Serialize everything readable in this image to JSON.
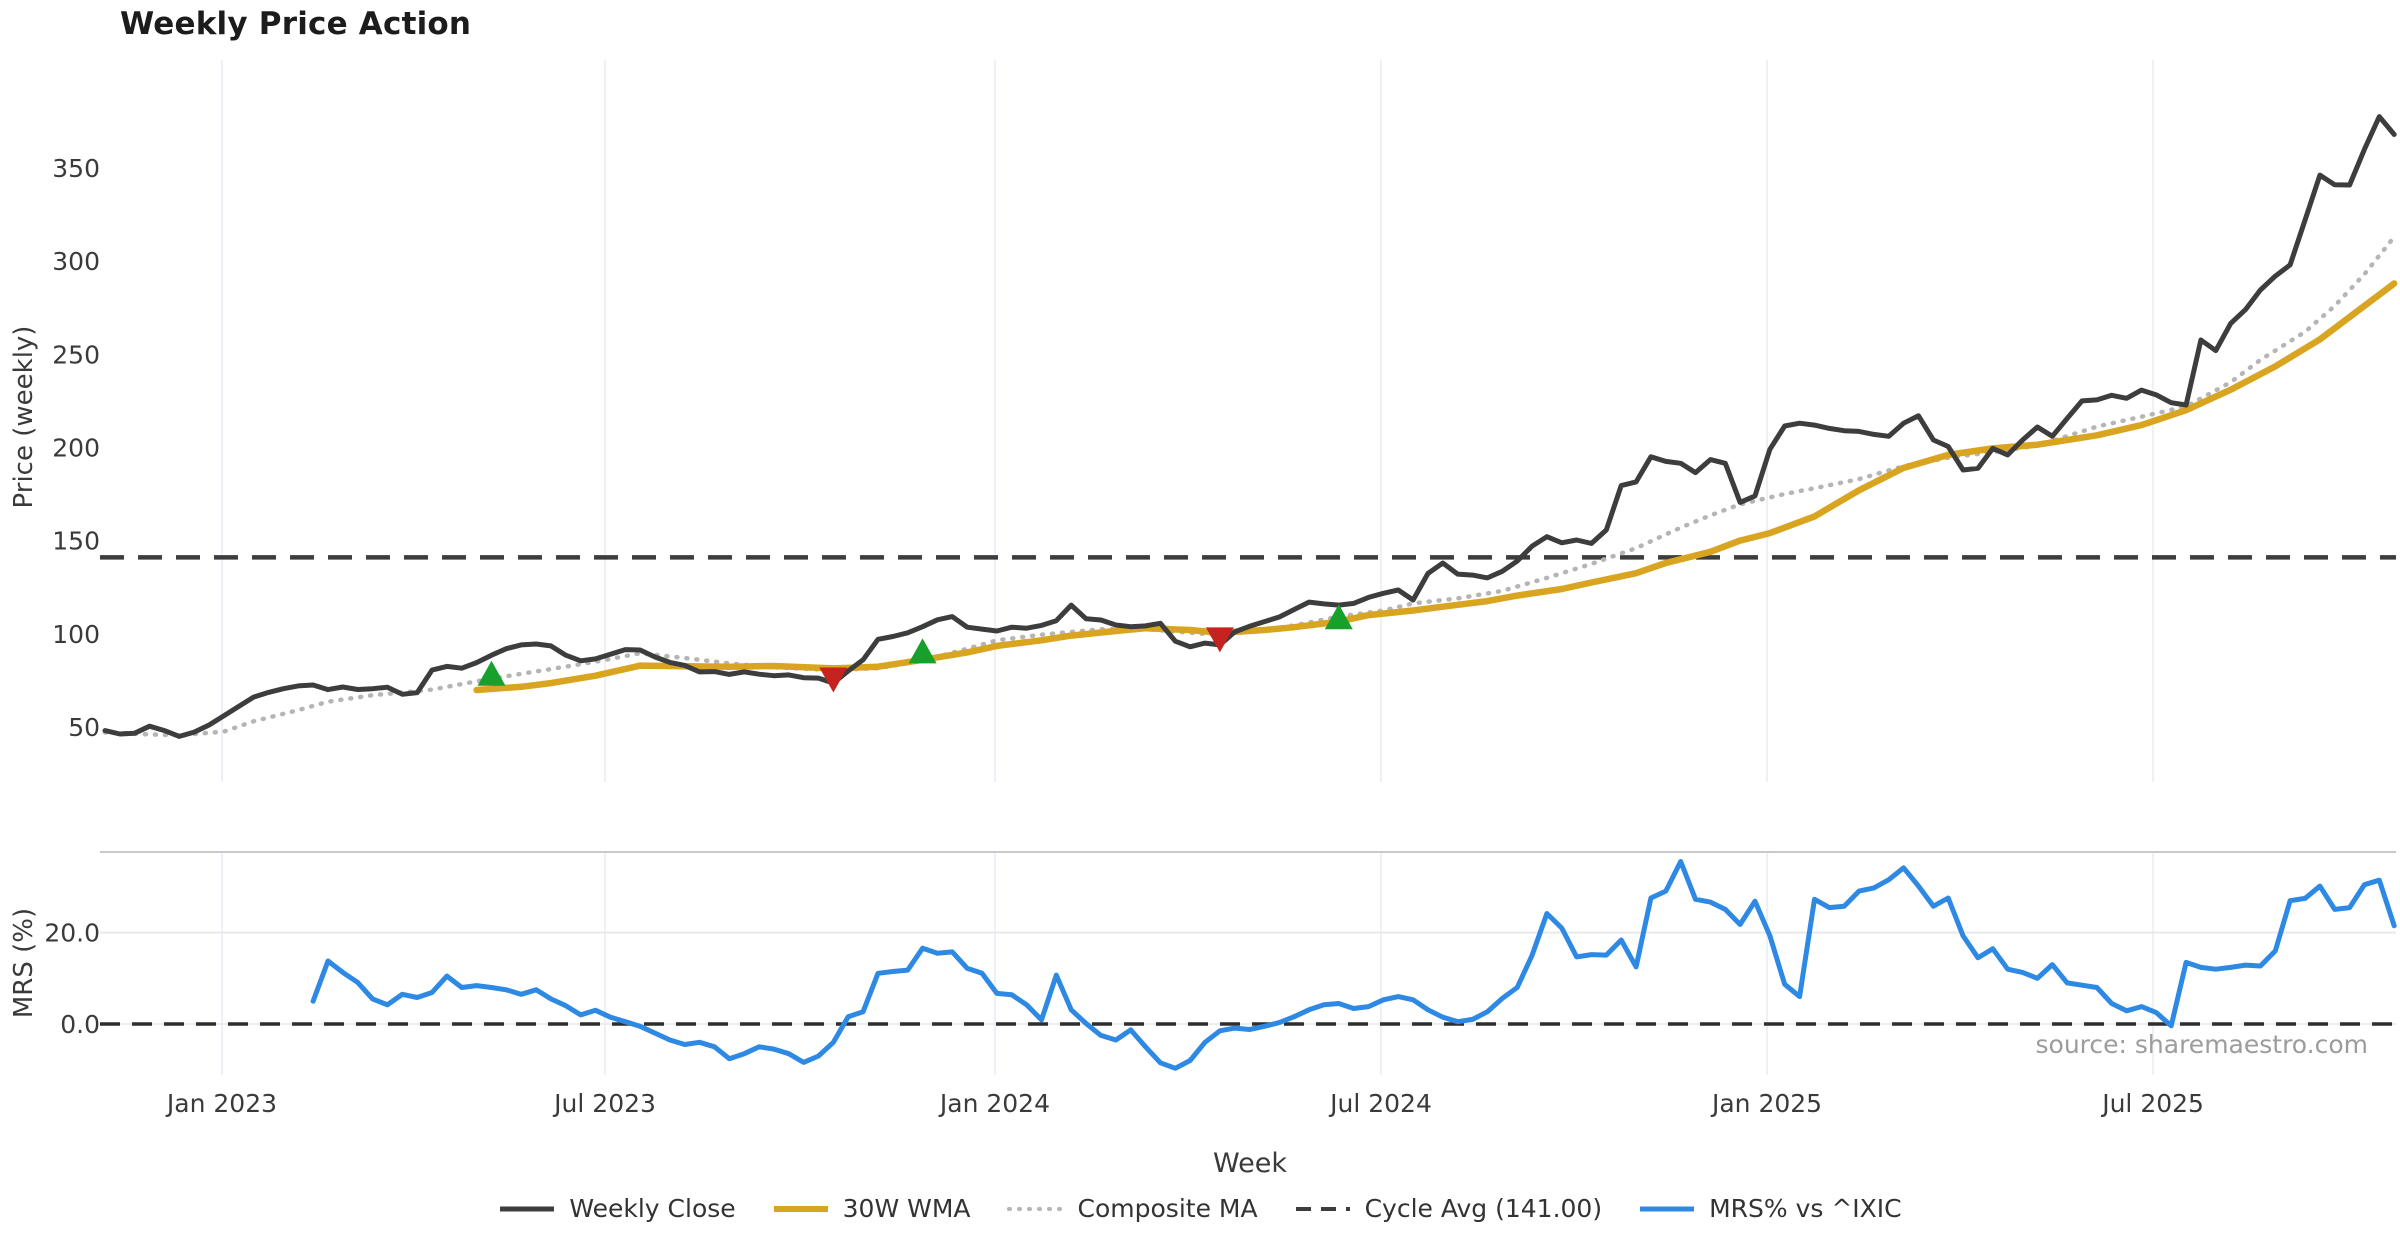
{
  "title": "Weekly Price Action",
  "source_note": "source: sharemaestro.com",
  "axes": {
    "x_label": "Week",
    "price_y_label": "Price (weekly)",
    "mrs_y_label": "MRS (%)",
    "price_ticks": [
      50,
      100,
      150,
      200,
      250,
      300,
      350
    ],
    "mrs_ticks": [
      {
        "value": 0,
        "label": "0.0"
      },
      {
        "value": 20,
        "label": "20.0"
      }
    ],
    "x_ticks": [
      {
        "week": 7.87,
        "label": "Jan 2023"
      },
      {
        "week": 33.64,
        "label": "Jul 2023"
      },
      {
        "week": 59.87,
        "label": "Jan 2024"
      },
      {
        "week": 85.84,
        "label": "Jul 2024"
      },
      {
        "week": 111.81,
        "label": "Jan 2025"
      },
      {
        "week": 137.78,
        "label": "Jul 2025"
      }
    ]
  },
  "legend": [
    {
      "label": "Weekly Close",
      "color": "#3d3d3d",
      "style": "solid",
      "width": 5
    },
    {
      "label": "30W WMA",
      "color": "#d9a521",
      "style": "solid",
      "width": 6
    },
    {
      "label": "Composite MA",
      "color": "#b5b5b5",
      "style": "dotted",
      "width": 4
    },
    {
      "label": "Cycle Avg (141.00)",
      "color": "#3d3d3d",
      "style": "dashed",
      "width": 4
    },
    {
      "label": "MRS% vs ^IXIC",
      "color": "#2e89e5",
      "style": "solid",
      "width": 5
    }
  ],
  "colors": {
    "grid_vertical": "#edf0f6",
    "grid_horizontal": "#e9e9e9",
    "panel_border": "#c9c9c9",
    "zero_dash": "#2e2e2e",
    "cycle_dash": "#3d3d3d",
    "buy_marker": "#17a02b",
    "sell_marker": "#c4231f",
    "tick_text": "#3a3a3a"
  },
  "chart_data": {
    "type": "line",
    "x_unit": "week",
    "start_date": "2022-11-07",
    "step_days": 7,
    "weeks_total": 155,
    "panels": [
      {
        "id": "price",
        "ylabel": "Price (weekly)",
        "ylim": [
          20,
          408
        ],
        "grid": "vertical-only",
        "series": [
          "weekly_close",
          "wma_30w",
          "composite_ma",
          "cycle_avg"
        ],
        "signals": true
      },
      {
        "id": "mrs",
        "ylabel": "MRS (%)",
        "ylim": [
          -12.5,
          37.6
        ],
        "grid": "vertical-and-20-line",
        "series": [
          "mrs_pct"
        ],
        "zero_line": "dashed"
      }
    ],
    "series": {
      "weekly_close": {
        "label": "Weekly Close",
        "color": "#3d3d3d",
        "start_week": 0,
        "values": [
          48.0,
          46.2,
          46.6,
          50.4,
          48.0,
          44.9,
          47.2,
          51.0,
          56.0,
          61.0,
          66.0,
          68.5,
          70.5,
          72.0,
          72.5,
          70.0,
          71.4,
          70.1,
          70.5,
          71.3,
          67.5,
          68.4,
          80.5,
          82.5,
          81.5,
          84.5,
          88.5,
          92.0,
          94.0,
          94.5,
          93.5,
          88.5,
          85.5,
          86.5,
          89.0,
          91.5,
          91.3,
          87.5,
          84.6,
          83.0,
          79.5,
          79.7,
          78.2,
          79.5,
          78.3,
          77.5,
          77.9,
          76.4,
          76.2,
          73.5,
          80.0,
          86.0,
          97.0,
          98.5,
          100.5,
          103.8,
          107.5,
          109.2,
          103.5,
          102.5,
          101.5,
          103.5,
          103.0,
          104.5,
          107.0,
          115.4,
          108.0,
          107.4,
          104.7,
          103.8,
          104.2,
          105.6,
          96.0,
          93.0,
          95.0,
          94.0,
          101.0,
          104.0,
          106.5,
          109.0,
          113.0,
          117.0,
          116.0,
          115.4,
          116.3,
          119.5,
          121.7,
          123.5,
          118.1,
          132.4,
          138.0,
          132.0,
          131.5,
          130.0,
          133.5,
          139.0,
          147.0,
          152.1,
          148.8,
          150.3,
          148.5,
          155.7,
          179.5,
          181.5,
          195.0,
          192.5,
          191.5,
          186.5,
          193.5,
          191.5,
          170.5,
          174.0,
          199.0,
          211.5,
          213.0,
          212.0,
          210.2,
          209.0,
          208.6,
          207.0,
          206.0,
          213.0,
          217.0,
          204.0,
          200.5,
          187.9,
          188.8,
          199.5,
          196.0,
          204.0,
          211.0,
          206.0,
          215.6,
          225.0,
          225.5,
          228.0,
          226.4,
          230.8,
          228.2,
          224.0,
          222.8,
          257.7,
          252.0,
          266.6,
          274.0,
          284.5,
          292.0,
          298.0,
          322.0,
          346.2,
          341.0,
          340.9,
          360.0,
          377.6,
          368.0
        ]
      },
      "wma_30w": {
        "label": "30W WMA",
        "color": "#d9a521",
        "points": [
          [
            25,
            69.8
          ],
          [
            28,
            71.5
          ],
          [
            30,
            73.5
          ],
          [
            33,
            77.5
          ],
          [
            36,
            82.9
          ],
          [
            39,
            82.6
          ],
          [
            42,
            82.3
          ],
          [
            45,
            82.7
          ],
          [
            49,
            81.4
          ],
          [
            52,
            82.3
          ],
          [
            55,
            86.0
          ],
          [
            58,
            90.0
          ],
          [
            60,
            93.5
          ],
          [
            63,
            96.5
          ],
          [
            65,
            99.0
          ],
          [
            68,
            101.5
          ],
          [
            70,
            103.0
          ],
          [
            73,
            102.0
          ],
          [
            75,
            100.5
          ],
          [
            78,
            102.0
          ],
          [
            80,
            103.5
          ],
          [
            83,
            106.5
          ],
          [
            85,
            110.0
          ],
          [
            88,
            112.5
          ],
          [
            90,
            114.5
          ],
          [
            93,
            117.5
          ],
          [
            95,
            120.5
          ],
          [
            98,
            124.0
          ],
          [
            100,
            127.5
          ],
          [
            103,
            132.5
          ],
          [
            105,
            138.0
          ],
          [
            108,
            144.0
          ],
          [
            110,
            150.0
          ],
          [
            112,
            154.0
          ],
          [
            115,
            163.0
          ],
          [
            118,
            177.0
          ],
          [
            121,
            189.0
          ],
          [
            124,
            196.0
          ],
          [
            127,
            199.5
          ],
          [
            130,
            201.5
          ],
          [
            134,
            206.5
          ],
          [
            137,
            212.0
          ],
          [
            140,
            220.0
          ],
          [
            143,
            231.0
          ],
          [
            146,
            243.5
          ],
          [
            149,
            258.0
          ],
          [
            152,
            276.0
          ],
          [
            154,
            288.0
          ]
        ]
      },
      "composite_ma": {
        "label": "Composite MA",
        "color": "#b5b5b5",
        "points": [
          [
            0,
            47.0
          ],
          [
            3,
            46.0
          ],
          [
            5,
            45.5
          ],
          [
            8,
            47.5
          ],
          [
            10,
            53.0
          ],
          [
            13,
            59.0
          ],
          [
            15,
            63.5
          ],
          [
            18,
            67.0
          ],
          [
            20,
            68.5
          ],
          [
            22,
            70.0
          ],
          [
            25,
            74.5
          ],
          [
            28,
            78.5
          ],
          [
            30,
            81.0
          ],
          [
            33,
            85.0
          ],
          [
            36,
            89.5
          ],
          [
            39,
            87.0
          ],
          [
            42,
            84.1
          ],
          [
            45,
            82.0
          ],
          [
            49,
            80.5
          ],
          [
            52,
            81.5
          ],
          [
            55,
            85.5
          ],
          [
            58,
            92.0
          ],
          [
            60,
            96.5
          ],
          [
            63,
            99.5
          ],
          [
            65,
            101.0
          ],
          [
            67,
            102.4
          ],
          [
            70,
            102.5
          ],
          [
            73,
            100.5
          ],
          [
            75,
            99.3
          ],
          [
            78,
            102.0
          ],
          [
            80,
            104.5
          ],
          [
            83,
            109.2
          ],
          [
            86,
            112.5
          ],
          [
            88,
            116.3
          ],
          [
            91,
            119.0
          ],
          [
            94,
            123.0
          ],
          [
            97,
            130.0
          ],
          [
            100,
            137.5
          ],
          [
            103,
            146.0
          ],
          [
            106,
            157.0
          ],
          [
            108,
            163.5
          ],
          [
            110,
            169.5
          ],
          [
            113,
            175.0
          ],
          [
            115,
            178.1
          ],
          [
            118,
            183.0
          ],
          [
            121,
            190.0
          ],
          [
            124,
            194.5
          ],
          [
            127,
            197.5
          ],
          [
            130,
            201.0
          ],
          [
            134,
            211.2
          ],
          [
            137,
            216.5
          ],
          [
            140,
            222.0
          ],
          [
            143,
            235.0
          ],
          [
            145,
            247.0
          ],
          [
            148,
            262.0
          ],
          [
            150,
            276.0
          ],
          [
            152,
            293.0
          ],
          [
            154,
            313.0
          ]
        ]
      },
      "cycle_avg": {
        "label": "Cycle Avg (141.00)",
        "color": "#3d3d3d",
        "style": "dashed",
        "value": 141.0
      },
      "mrs_pct": {
        "label": "MRS% vs ^IXIC",
        "color": "#2e89e5",
        "start_week": 14,
        "values": [
          5.0,
          13.8,
          11.3,
          9.1,
          5.5,
          4.2,
          6.5,
          5.8,
          6.9,
          10.5,
          8.0,
          8.4,
          8.0,
          7.5,
          6.5,
          7.5,
          5.5,
          4.0,
          2.0,
          3.0,
          1.5,
          0.5,
          -0.5,
          -2.0,
          -3.5,
          -4.5,
          -4.0,
          -5.0,
          -7.6,
          -6.5,
          -5.0,
          -5.5,
          -6.5,
          -8.4,
          -7.0,
          -4.0,
          1.6,
          2.7,
          11.1,
          11.5,
          11.8,
          16.6,
          15.5,
          15.8,
          12.2,
          11.1,
          6.7,
          6.4,
          4.2,
          0.9,
          10.7,
          3.1,
          0.1,
          -2.5,
          -3.5,
          -1.3,
          -5.0,
          -8.5,
          -9.7,
          -8.0,
          -4.0,
          -1.5,
          -0.9,
          -1.2,
          -0.5,
          0.3,
          1.6,
          3.1,
          4.2,
          4.5,
          3.4,
          3.8,
          5.3,
          6.0,
          5.3,
          3.1,
          1.5,
          0.5,
          1.0,
          2.7,
          5.6,
          8.0,
          15.0,
          24.2,
          21.0,
          14.7,
          15.2,
          15.1,
          18.4,
          12.5,
          27.6,
          29.1,
          35.6,
          27.3,
          26.7,
          25.1,
          21.8,
          26.9,
          19.3,
          8.7,
          6.0,
          27.3,
          25.5,
          25.8,
          29.1,
          29.8,
          31.6,
          34.2,
          30.2,
          25.8,
          27.6,
          19.3,
          14.5,
          16.5,
          12.0,
          11.3,
          10.0,
          13.0,
          9.0,
          8.5,
          8.0,
          4.5,
          2.9,
          3.8,
          2.5,
          -0.4,
          13.5,
          12.4,
          12.0,
          12.4,
          12.9,
          12.7,
          16.0,
          27.0,
          27.5,
          30.2,
          25.1,
          25.5,
          30.5,
          31.5,
          21.5
        ]
      }
    },
    "signals": {
      "buy": {
        "marker": "triangle-up",
        "color": "#17a02b",
        "points": [
          [
            26,
            78.0
          ],
          [
            55,
            90.0
          ],
          [
            83,
            108.3
          ]
        ]
      },
      "sell": {
        "marker": "triangle-down",
        "color": "#c4231f",
        "points": [
          [
            49,
            76.0
          ],
          [
            75,
            97.5
          ]
        ]
      }
    }
  }
}
